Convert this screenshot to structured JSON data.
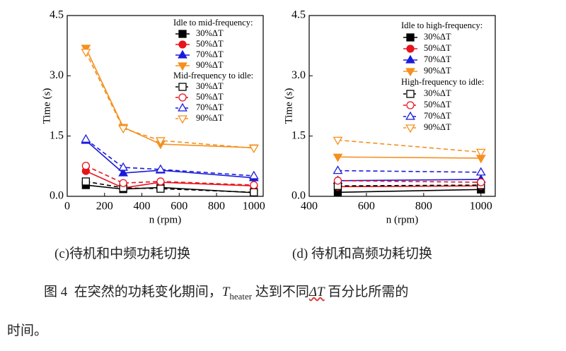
{
  "chart_data": [
    {
      "type": "line",
      "label": "(c)待机和中频功耗切换",
      "x_label": "n (rpm)",
      "y_label": "Time (s)",
      "x": [
        100,
        300,
        500,
        1000
      ],
      "xlim": [
        0,
        1050
      ],
      "xticks": [
        0,
        200,
        400,
        600,
        800,
        1000
      ],
      "ylim": [
        0,
        4.5
      ],
      "yticks": [
        {
          "value": 0,
          "label": "0.0"
        },
        1.5,
        {
          "value": 3,
          "label": "3.0"
        },
        4.5
      ],
      "legend": "upper right",
      "legend_groups": [
        "Idle to mid-frequency:",
        "Mid-frequency to idle:"
      ],
      "series": [
        {
          "name": "30%ΔT",
          "group": 0,
          "color": "#000000",
          "marker": "square",
          "filled": true,
          "dashed": false,
          "values": [
            0.28,
            0.18,
            0.22,
            0.09
          ]
        },
        {
          "name": "50%ΔT",
          "group": 0,
          "color": "#e8141c",
          "marker": "circle",
          "filled": true,
          "dashed": false,
          "values": [
            0.63,
            0.21,
            0.35,
            0.26
          ]
        },
        {
          "name": "70%ΔT",
          "group": 0,
          "color": "#1a1adc",
          "marker": "triangle-up",
          "filled": true,
          "dashed": false,
          "values": [
            1.39,
            0.58,
            0.65,
            0.46
          ]
        },
        {
          "name": "90%ΔT",
          "group": 0,
          "color": "#f5901e",
          "marker": "triangle-down",
          "filled": true,
          "dashed": false,
          "values": [
            3.69,
            1.72,
            1.3,
            1.21
          ]
        },
        {
          "name": "30%ΔT",
          "group": 1,
          "color": "#000000",
          "marker": "square",
          "filled": false,
          "dashed": true,
          "values": [
            0.37,
            0.21,
            0.19,
            0.1
          ]
        },
        {
          "name": "50%ΔT",
          "group": 1,
          "color": "#e8141c",
          "marker": "circle",
          "filled": false,
          "dashed": true,
          "values": [
            0.76,
            0.33,
            0.37,
            0.28
          ]
        },
        {
          "name": "70%ΔT",
          "group": 1,
          "color": "#1a1adc",
          "marker": "triangle-up",
          "filled": false,
          "dashed": true,
          "values": [
            1.42,
            0.72,
            0.67,
            0.51
          ]
        },
        {
          "name": "90%ΔT",
          "group": 1,
          "color": "#f5901e",
          "marker": "triangle-down",
          "filled": false,
          "dashed": true,
          "values": [
            3.59,
            1.69,
            1.39,
            1.2
          ]
        }
      ]
    },
    {
      "type": "line",
      "label": "(d) 待机和高频功耗切换",
      "x_label": "n (rpm)",
      "y_label": "Time (s)",
      "x": [
        500,
        1000
      ],
      "xlim": [
        400,
        1050
      ],
      "xticks": [
        400,
        600,
        800,
        1000
      ],
      "ylim": [
        0,
        4.5
      ],
      "yticks": [
        {
          "value": 0,
          "label": "0.0"
        },
        1.5,
        {
          "value": 3,
          "label": "3.0"
        },
        4.5
      ],
      "legend": "upper right",
      "legend_groups": [
        "Idle to high-frequency:",
        "High-frequency to idle:"
      ],
      "series": [
        {
          "name": "30%ΔT",
          "group": 0,
          "color": "#000000",
          "marker": "square",
          "filled": true,
          "dashed": false,
          "values": [
            0.1,
            0.17
          ]
        },
        {
          "name": "50%ΔT",
          "group": 0,
          "color": "#e8141c",
          "marker": "circle",
          "filled": true,
          "dashed": false,
          "values": [
            0.24,
            0.26
          ]
        },
        {
          "name": "70%ΔT",
          "group": 0,
          "color": "#1a1adc",
          "marker": "triangle-up",
          "filled": true,
          "dashed": false,
          "values": [
            0.39,
            0.42
          ]
        },
        {
          "name": "90%ΔT",
          "group": 0,
          "color": "#f5901e",
          "marker": "triangle-down",
          "filled": true,
          "dashed": false,
          "values": [
            0.98,
            0.95
          ]
        },
        {
          "name": "30%ΔT",
          "group": 1,
          "color": "#000000",
          "marker": "square",
          "filled": false,
          "dashed": true,
          "values": [
            0.26,
            0.28
          ]
        },
        {
          "name": "50%ΔT",
          "group": 1,
          "color": "#e8141c",
          "marker": "circle",
          "filled": false,
          "dashed": true,
          "values": [
            0.39,
            0.35
          ]
        },
        {
          "name": "70%ΔT",
          "group": 1,
          "color": "#1a1adc",
          "marker": "triangle-up",
          "filled": false,
          "dashed": true,
          "values": [
            0.64,
            0.6
          ]
        },
        {
          "name": "90%ΔT",
          "group": 1,
          "color": "#f5901e",
          "marker": "triangle-down",
          "filled": false,
          "dashed": true,
          "values": [
            1.4,
            1.1
          ]
        }
      ]
    }
  ],
  "caption": {
    "figure": "图 4",
    "text_before": "在突然的功耗变化期间，",
    "symbol": "T",
    "subscript": "heater",
    "text_middle": " 达到不同",
    "delta": "ΔT",
    "text_after": " 百分比所需的",
    "line2": "时间。"
  }
}
